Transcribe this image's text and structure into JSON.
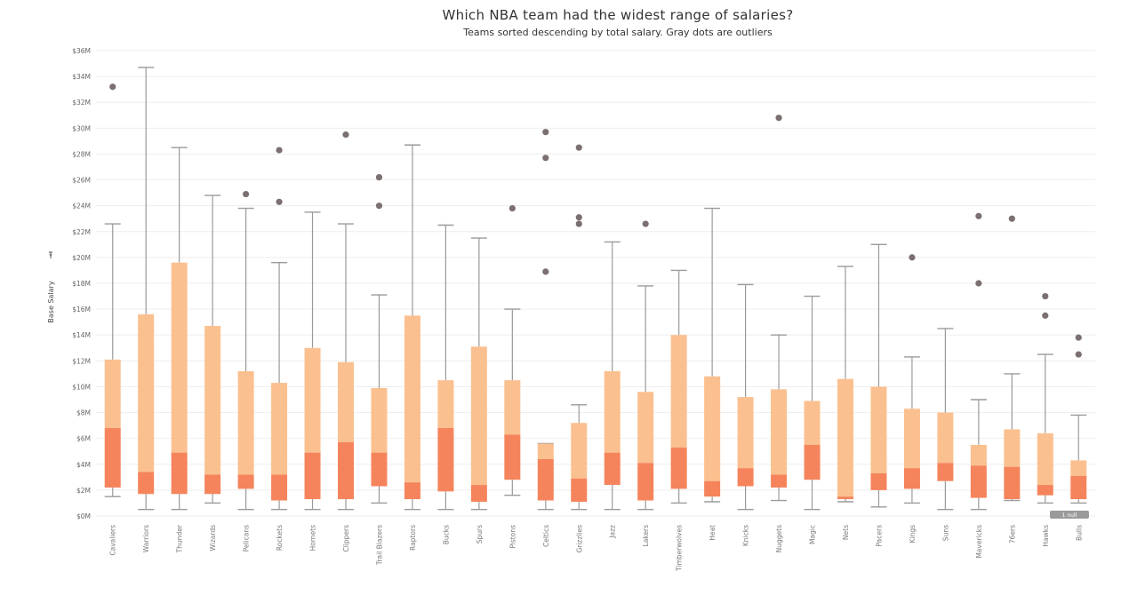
{
  "chart_data": {
    "type": "boxplot",
    "title": "Which NBA team had the widest range of salaries?",
    "subtitle": "Teams sorted descending by total salary. Gray dots are outliers",
    "ylabel": "Base Salary",
    "ylabel_icon": "sort-icon",
    "xlabel": "",
    "ylim": [
      0,
      36
    ],
    "ytick_labels": [
      "$0M",
      "$2M",
      "$4M",
      "$6M",
      "$8M",
      "$10M",
      "$12M",
      "$14M",
      "$16M",
      "$18M",
      "$20M",
      "$22M",
      "$24M",
      "$26M",
      "$28M",
      "$30M",
      "$32M",
      "$34M",
      "$36M"
    ],
    "null_badge": "1 null",
    "colors": {
      "upper_box": "#fbc08f",
      "lower_box": "#f5845c",
      "whisker": "#9a9a9a",
      "outlier": "#7b6f6f",
      "grid": "#eeeeee",
      "badge": "#9a9a9a"
    },
    "series": [
      {
        "team": "Cavaliers",
        "min": 1.5,
        "q1": 2.2,
        "median": 6.8,
        "q3": 12.1,
        "max": 22.6,
        "outliers": [
          33.2
        ]
      },
      {
        "team": "Warriors",
        "min": 0.5,
        "q1": 1.7,
        "median": 3.4,
        "q3": 15.6,
        "max": 34.7,
        "outliers": []
      },
      {
        "team": "Thunder",
        "min": 0.5,
        "q1": 1.7,
        "median": 4.9,
        "q3": 19.6,
        "max": 28.5,
        "outliers": []
      },
      {
        "team": "Wizards",
        "min": 1.0,
        "q1": 1.7,
        "median": 3.2,
        "q3": 14.7,
        "max": 24.8,
        "outliers": []
      },
      {
        "team": "Pelicans",
        "min": 0.5,
        "q1": 2.1,
        "median": 3.2,
        "q3": 11.2,
        "max": 23.8,
        "outliers": [
          24.9
        ]
      },
      {
        "team": "Rockets",
        "min": 0.5,
        "q1": 1.2,
        "median": 3.2,
        "q3": 10.3,
        "max": 19.6,
        "outliers": [
          24.3,
          28.3
        ]
      },
      {
        "team": "Hornets",
        "min": 0.5,
        "q1": 1.3,
        "median": 4.9,
        "q3": 13.0,
        "max": 23.5,
        "outliers": []
      },
      {
        "team": "Clippers",
        "min": 0.5,
        "q1": 1.3,
        "median": 5.7,
        "q3": 11.9,
        "max": 22.6,
        "outliers": [
          29.5
        ]
      },
      {
        "team": "Trail Blazers",
        "min": 1.0,
        "q1": 2.3,
        "median": 4.9,
        "q3": 9.9,
        "max": 17.1,
        "outliers": [
          24.0,
          26.2
        ]
      },
      {
        "team": "Raptors",
        "min": 0.5,
        "q1": 1.3,
        "median": 2.6,
        "q3": 15.5,
        "max": 28.7,
        "outliers": []
      },
      {
        "team": "Bucks",
        "min": 0.5,
        "q1": 1.9,
        "median": 6.8,
        "q3": 10.5,
        "max": 22.5,
        "outliers": []
      },
      {
        "team": "Spurs",
        "min": 0.5,
        "q1": 1.1,
        "median": 2.4,
        "q3": 13.1,
        "max": 21.5,
        "outliers": []
      },
      {
        "team": "Pistons",
        "min": 1.6,
        "q1": 2.8,
        "median": 6.3,
        "q3": 10.5,
        "max": 16.0,
        "outliers": [
          23.8
        ]
      },
      {
        "team": "Celtics",
        "min": 0.5,
        "q1": 1.2,
        "median": 4.4,
        "q3": 5.6,
        "max": 5.6,
        "outliers": [
          18.9,
          27.7,
          29.7
        ]
      },
      {
        "team": "Grizzlies",
        "min": 0.5,
        "q1": 1.1,
        "median": 2.9,
        "q3": 7.2,
        "max": 8.6,
        "outliers": [
          22.6,
          23.1,
          28.5
        ]
      },
      {
        "team": "Jazz",
        "min": 0.5,
        "q1": 2.4,
        "median": 4.9,
        "q3": 11.2,
        "max": 21.2,
        "outliers": []
      },
      {
        "team": "Lakers",
        "min": 0.5,
        "q1": 1.2,
        "median": 4.1,
        "q3": 9.6,
        "max": 17.8,
        "outliers": [
          22.6
        ]
      },
      {
        "team": "Timberwolves",
        "min": 1.0,
        "q1": 2.1,
        "median": 5.3,
        "q3": 14.0,
        "max": 19.0,
        "outliers": []
      },
      {
        "team": "Heat",
        "min": 1.1,
        "q1": 1.5,
        "median": 2.7,
        "q3": 10.8,
        "max": 23.8,
        "outliers": []
      },
      {
        "team": "Knicks",
        "min": 0.5,
        "q1": 2.3,
        "median": 3.7,
        "q3": 9.2,
        "max": 17.9,
        "outliers": []
      },
      {
        "team": "Nuggets",
        "min": 1.2,
        "q1": 2.2,
        "median": 3.2,
        "q3": 9.8,
        "max": 14.0,
        "outliers": [
          30.8
        ]
      },
      {
        "team": "Magic",
        "min": 0.5,
        "q1": 2.8,
        "median": 5.5,
        "q3": 8.9,
        "max": 17.0,
        "outliers": []
      },
      {
        "team": "Nets",
        "min": 1.1,
        "q1": 1.3,
        "median": 1.5,
        "q3": 10.6,
        "max": 19.3,
        "outliers": []
      },
      {
        "team": "Pacers",
        "min": 0.7,
        "q1": 2.0,
        "median": 3.3,
        "q3": 10.0,
        "max": 21.0,
        "outliers": []
      },
      {
        "team": "Kings",
        "min": 1.0,
        "q1": 2.1,
        "median": 3.7,
        "q3": 8.3,
        "max": 12.3,
        "outliers": [
          20.0
        ]
      },
      {
        "team": "Suns",
        "min": 0.5,
        "q1": 2.7,
        "median": 4.1,
        "q3": 8.0,
        "max": 14.5,
        "outliers": []
      },
      {
        "team": "Mavericks",
        "min": 0.5,
        "q1": 1.4,
        "median": 3.9,
        "q3": 5.5,
        "max": 9.0,
        "outliers": [
          18.0,
          23.2
        ]
      },
      {
        "team": "76ers",
        "min": 1.2,
        "q1": 1.3,
        "median": 3.8,
        "q3": 6.7,
        "max": 11.0,
        "outliers": [
          23.0
        ]
      },
      {
        "team": "Hawks",
        "min": 1.0,
        "q1": 1.6,
        "median": 2.4,
        "q3": 6.4,
        "max": 12.5,
        "outliers": [
          15.5,
          17.0
        ]
      },
      {
        "team": "Bulls",
        "min": 1.0,
        "q1": 1.3,
        "median": 3.1,
        "q3": 4.3,
        "max": 7.8,
        "outliers": [
          12.5,
          13.8
        ]
      }
    ]
  }
}
